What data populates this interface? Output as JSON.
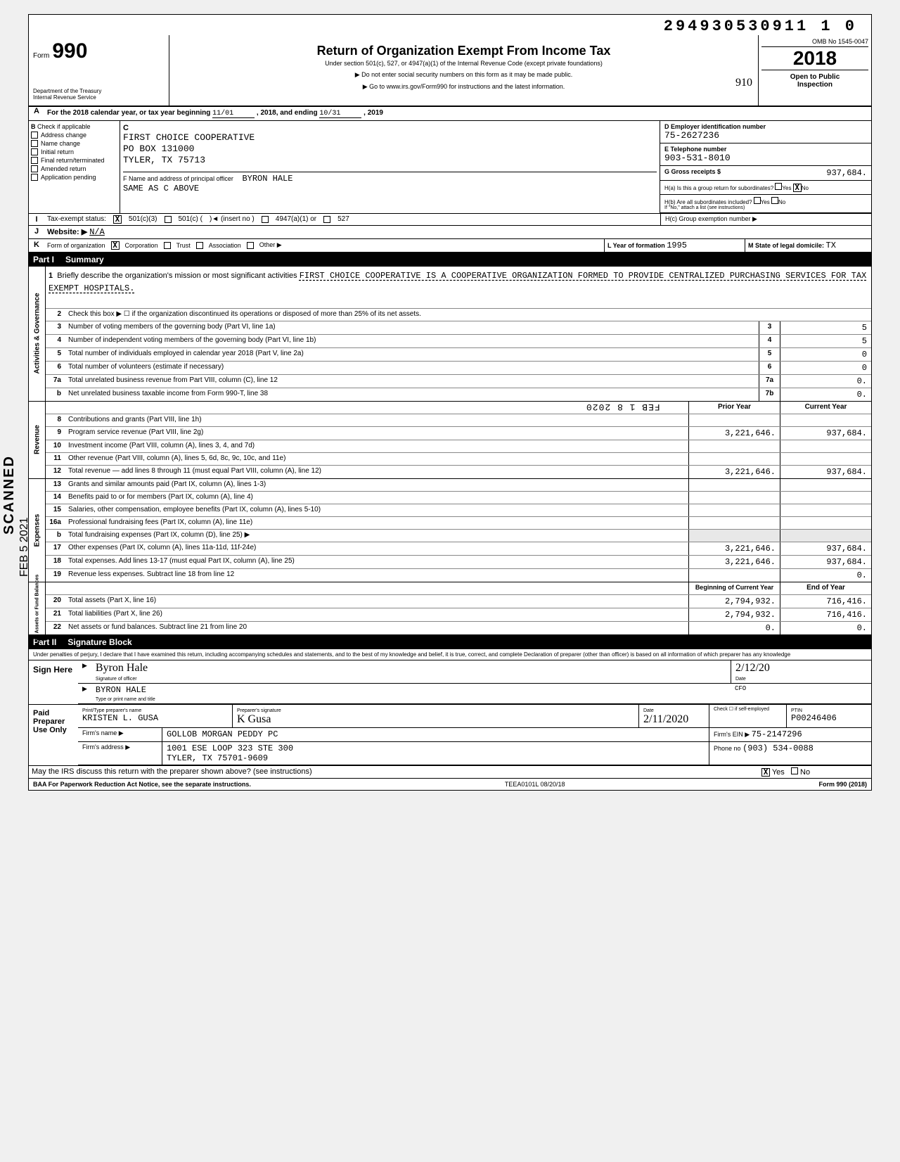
{
  "dln": "294930530911 1  0",
  "header": {
    "form_word": "Form",
    "form_number": "990",
    "title": "Return of Organization Exempt From Income Tax",
    "subtitle": "Under section 501(c), 527, or 4947(a)(1) of the Internal Revenue Code (except private foundations)",
    "arrow1": "▶ Do not enter social security numbers on this form as it may be made public.",
    "arrow2": "▶ Go to www.irs.gov/Form990 for instructions and the latest information.",
    "dept1": "Department of the Treasury",
    "dept2": "Internal Revenue Service",
    "omb": "OMB No  1545-0047",
    "year": "2018",
    "open1": "Open to Public",
    "open2": "Inspection",
    "handnote": "910"
  },
  "rowA": {
    "text1": "For the 2018 calendar year, or tax year beginning",
    "begin": "11/01",
    "text2": ", 2018, and ending",
    "end": "10/31",
    "text3": ", 2019"
  },
  "colB": {
    "header": "Check if applicable",
    "items": [
      "Address change",
      "Name change",
      "Initial return",
      "Final return/terminated",
      "Amended return",
      "Application pending"
    ]
  },
  "colC": {
    "letter": "C",
    "name": "FIRST CHOICE COOPERATIVE",
    "addr1": "PO BOX 131000",
    "addr2": "TYLER, TX 75713",
    "f_label": "F  Name and address of principal officer",
    "f_name": "BYRON HALE",
    "f_addr": "SAME AS C ABOVE"
  },
  "colDE": {
    "d_label": "D  Employer identification number",
    "d_val": "75-2627236",
    "e_label": "E  Telephone number",
    "e_val": "903-531-8010",
    "g_label": "G  Gross receipts $",
    "g_val": "937,684.",
    "ha_label": "H(a) Is this a group return for subordinates?",
    "ha_yes": "Yes",
    "ha_no": "No",
    "hb_label": "H(b) Are all subordinates included?",
    "hb_note": "If \"No,\" attach a list (see instructions)",
    "hc_label": "H(c) Group exemption number ▶"
  },
  "rowI": {
    "label": "Tax-exempt status:",
    "opt1": "501(c)(3)",
    "opt2": "501(c) (",
    "opt2b": ")◄  (insert no )",
    "opt3": "4947(a)(1) or",
    "opt4": "527"
  },
  "rowJ": {
    "label": "Website: ▶",
    "val": "N/A"
  },
  "rowK": {
    "label": "Form of organization",
    "opts": [
      "Corporation",
      "Trust",
      "Association",
      "Other ▶"
    ],
    "l_label": "L Year of formation",
    "l_val": "1995",
    "m_label": "M State of legal domicile:",
    "m_val": "TX"
  },
  "part1": {
    "num": "Part I",
    "title": "Summary"
  },
  "gov": {
    "vlabel": "Activities & Governance",
    "l1_label": "Briefly describe the organization's mission or most significant activities",
    "l1_text": "FIRST CHOICE COOPERATIVE IS A COOPERATIVE ORGANIZATION FORMED TO PROVIDE CENTRALIZED PURCHASING SERVICES FOR TAX EXEMPT HOSPITALS.",
    "l2": "Check this box ▶ ☐ if the organization discontinued its operations or disposed of more than 25% of its net assets.",
    "l3": "Number of voting members of the governing body (Part VI, line 1a)",
    "l3v": "5",
    "l4": "Number of independent voting members of the governing body (Part VI, line 1b)",
    "l4v": "5",
    "l5": "Total number of individuals employed in calendar year 2018 (Part V, line 2a)",
    "l5v": "0",
    "l6": "Total number of volunteers (estimate if necessary)",
    "l6v": "0",
    "l7a": "Total unrelated business revenue from Part VIII, column (C), line 12",
    "l7av": "0.",
    "l7b": "Net unrelated business taxable income from Form 990-T, line 38",
    "l7bv": "0."
  },
  "rev": {
    "vlabel": "Revenue",
    "hdr_prior": "Prior Year",
    "hdr_curr": "Current Year",
    "stamp": "FEB 1 8 2020",
    "rows": [
      {
        "n": "8",
        "t": "Contributions and grants (Part VIII, line 1h)",
        "p": "",
        "c": ""
      },
      {
        "n": "9",
        "t": "Program service revenue (Part VIII, line 2g)",
        "p": "3,221,646.",
        "c": "937,684."
      },
      {
        "n": "10",
        "t": "Investment income (Part VIII, column (A), lines 3, 4, and 7d)",
        "p": "",
        "c": ""
      },
      {
        "n": "11",
        "t": "Other revenue (Part VIII, column (A), lines 5, 6d, 8c, 9c, 10c, and 11e)",
        "p": "",
        "c": ""
      },
      {
        "n": "12",
        "t": "Total revenue — add lines 8 through 11 (must equal Part VIII, column (A), line 12)",
        "p": "3,221,646.",
        "c": "937,684."
      }
    ]
  },
  "exp": {
    "vlabel": "Expenses",
    "rows": [
      {
        "n": "13",
        "t": "Grants and similar amounts paid (Part IX, column (A), lines 1-3)",
        "p": "",
        "c": ""
      },
      {
        "n": "14",
        "t": "Benefits paid to or for members (Part IX, column (A), line 4)",
        "p": "",
        "c": ""
      },
      {
        "n": "15",
        "t": "Salaries, other compensation, employee benefits (Part IX, column (A), lines 5-10)",
        "p": "",
        "c": ""
      },
      {
        "n": "16a",
        "t": "Professional fundraising fees (Part IX, column (A), line 11e)",
        "p": "",
        "c": ""
      },
      {
        "n": "b",
        "t": "Total fundraising expenses (Part IX, column (D), line 25) ▶",
        "p": "shade",
        "c": "shade"
      },
      {
        "n": "17",
        "t": "Other expenses (Part IX, column (A), lines 11a-11d, 11f-24e)",
        "p": "3,221,646.",
        "c": "937,684."
      },
      {
        "n": "18",
        "t": "Total expenses. Add lines 13-17 (must equal Part IX, column (A), line 25)",
        "p": "3,221,646.",
        "c": "937,684."
      },
      {
        "n": "19",
        "t": "Revenue less expenses. Subtract line 18 from line 12",
        "p": "",
        "c": "0."
      }
    ]
  },
  "net": {
    "vlabel": "Net Assets or Fund Balances",
    "hdr_begin": "Beginning of Current Year",
    "hdr_end": "End of Year",
    "rows": [
      {
        "n": "20",
        "t": "Total assets (Part X, line 16)",
        "p": "2,794,932.",
        "c": "716,416."
      },
      {
        "n": "21",
        "t": "Total liabilities (Part X, line 26)",
        "p": "2,794,932.",
        "c": "716,416."
      },
      {
        "n": "22",
        "t": "Net assets or fund balances. Subtract line 21 from line 20",
        "p": "0.",
        "c": "0."
      }
    ]
  },
  "part2": {
    "num": "Part II",
    "title": "Signature Block"
  },
  "penalty": "Under penalties of perjury, I declare that I have examined this return, including accompanying schedules and statements, and to the best of my knowledge and belief, it is true, correct, and complete  Declaration of preparer (other than officer) is based on all information of which preparer has any knowledge",
  "sign": {
    "label": "Sign Here",
    "sig_label": "Signature of officer",
    "date_label": "Date",
    "date_val": "2/12/20",
    "name": "BYRON HALE",
    "name_label": "Type or print name and title",
    "title": "CFO"
  },
  "prep": {
    "label1": "Paid",
    "label2": "Preparer",
    "label3": "Use Only",
    "h1": "Print/Type preparer's name",
    "h2": "Preparer's signature",
    "h3": "Date",
    "h4": "Check ☐ if self-employed",
    "h5": "PTIN",
    "name": "KRISTEN L. GUSA",
    "date": "2/11/2020",
    "ptin": "P00246406",
    "firm_label": "Firm's name   ▶",
    "firm": "GOLLOB MORGAN PEDDY PC",
    "addr_label": "Firm's address ▶",
    "addr1": "1001 ESE LOOP 323 STE 300",
    "addr2": "TYLER, TX 75701-9609",
    "ein_label": "Firm's EIN ▶",
    "ein": "75-2147296",
    "phone_label": "Phone no",
    "phone": "(903) 534-0088"
  },
  "discuss": {
    "text": "May the IRS discuss this return with the preparer shown above? (see instructions)",
    "yes": "Yes",
    "no": "No"
  },
  "footer": {
    "left": "BAA  For Paperwork Reduction Act Notice, see the separate instructions.",
    "mid": "TEEA0101L  08/20/18",
    "right": "Form 990 (2018)"
  },
  "sidestamp": {
    "scanned": "SCANNED",
    "date": "FEB  5 2021"
  }
}
